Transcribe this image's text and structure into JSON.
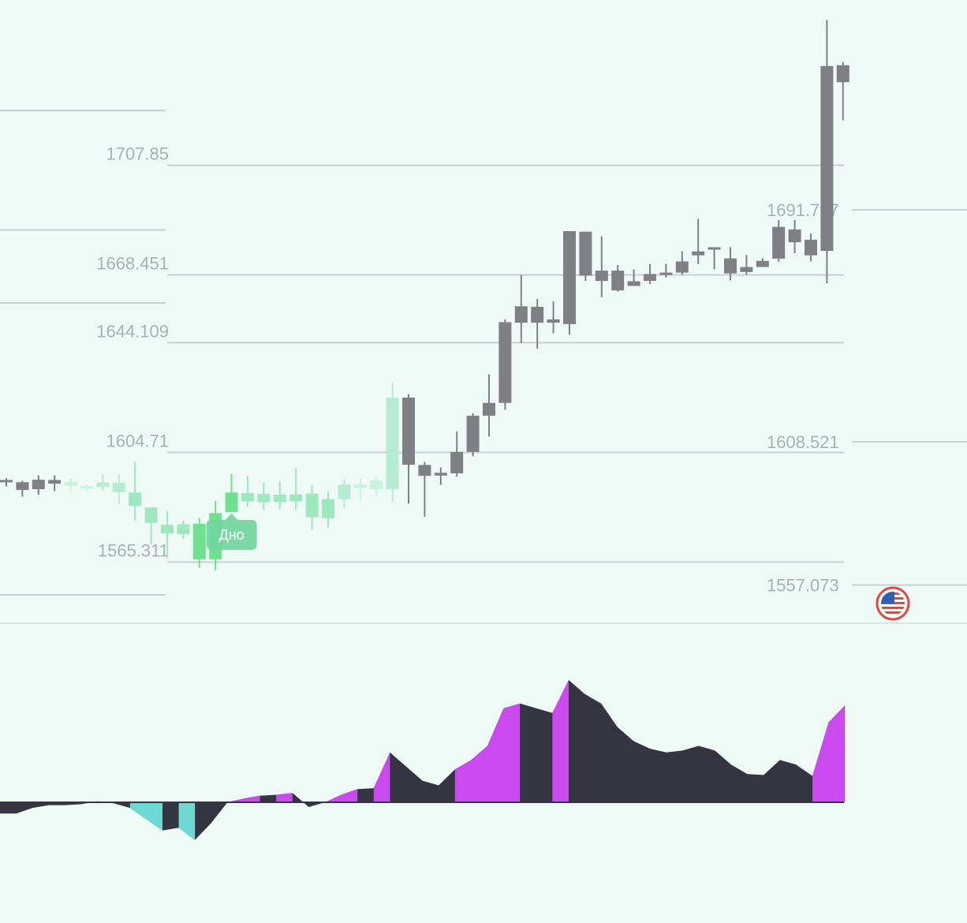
{
  "chart_data": [
    {
      "type": "candlestick",
      "ylim": [
        1530,
        1760
      ],
      "level_lines_left": [
        {
          "price": 1727.5
        },
        {
          "price": 1684.6
        },
        {
          "price": 1658.4
        },
        {
          "price": 1707.85,
          "label": "1707.85"
        },
        {
          "price": 1668.451,
          "label": "1668.451"
        },
        {
          "price": 1644.109,
          "label": "1644.109"
        },
        {
          "price": 1604.71,
          "label": "1604.71"
        },
        {
          "price": 1565.311,
          "label": "1565.311"
        },
        {
          "price": 1553.5
        }
      ],
      "level_lines_right": [
        {
          "price": 1691.797,
          "label": "1691.797"
        },
        {
          "price": 1608.521,
          "label": "1608.521"
        },
        {
          "price": 1557.073,
          "label": "1557.073"
        }
      ],
      "marker": {
        "label": "Дно",
        "candle_index": 14
      },
      "candles": [
        {
          "o": 1594.8,
          "h": 1595.5,
          "l": 1592.5,
          "c": 1594.1,
          "color": "#7f7f86"
        },
        {
          "o": 1594.0,
          "h": 1594.5,
          "l": 1588.8,
          "c": 1591.2,
          "color": "#7f7f86"
        },
        {
          "o": 1594.9,
          "h": 1596.5,
          "l": 1589.5,
          "c": 1591.5,
          "color": "#7f7f86"
        },
        {
          "o": 1594.8,
          "h": 1596.5,
          "l": 1590.8,
          "c": 1593.5,
          "color": "#7f7f86"
        },
        {
          "o": 1594.2,
          "h": 1595.5,
          "l": 1590.0,
          "c": 1592.7,
          "color": "#c8f3df"
        },
        {
          "o": 1592.5,
          "h": 1593.2,
          "l": 1591.0,
          "c": 1591.8,
          "color": "#c8f3df"
        },
        {
          "o": 1593.9,
          "h": 1596.8,
          "l": 1591.0,
          "c": 1592.3,
          "color": "#b5ecd2"
        },
        {
          "o": 1593.8,
          "h": 1597.0,
          "l": 1586.2,
          "c": 1590.4,
          "color": "#b5ecd2"
        },
        {
          "o": 1590.3,
          "h": 1601.3,
          "l": 1580.2,
          "c": 1585.5,
          "color": "#9ee8bd"
        },
        {
          "o": 1584.9,
          "h": 1583.7,
          "l": 1571.6,
          "c": 1579.4,
          "color": "#9ee8bd"
        },
        {
          "o": 1578.7,
          "h": 1583.7,
          "l": 1566.8,
          "c": 1575.6,
          "color": "#9ee8bd"
        },
        {
          "o": 1578.9,
          "h": 1580.2,
          "l": 1573.5,
          "c": 1575.4,
          "color": "#9ee8bd"
        },
        {
          "o": 1579.1,
          "h": 1581.2,
          "l": 1563.3,
          "c": 1566.3,
          "color": "#6ee08f"
        },
        {
          "o": 1582.9,
          "h": 1587.3,
          "l": 1562.3,
          "c": 1566.3,
          "color": "#6ee08f"
        },
        {
          "o": 1590.3,
          "h": 1597.0,
          "l": 1583.7,
          "c": 1583.3,
          "color": "#6ee08f"
        },
        {
          "o": 1590.1,
          "h": 1596.3,
          "l": 1585.2,
          "c": 1587.1,
          "color": "#9ee8bd"
        },
        {
          "o": 1589.8,
          "h": 1594.0,
          "l": 1584.0,
          "c": 1586.8,
          "color": "#9ee8bd"
        },
        {
          "o": 1589.5,
          "h": 1594.3,
          "l": 1584.4,
          "c": 1586.9,
          "color": "#9ee8bd"
        },
        {
          "o": 1589.6,
          "h": 1599.2,
          "l": 1584.2,
          "c": 1587.1,
          "color": "#9ee8bd"
        },
        {
          "o": 1589.9,
          "h": 1592.8,
          "l": 1576.9,
          "c": 1581.4,
          "color": "#9ee8bd"
        },
        {
          "o": 1587.9,
          "h": 1590.8,
          "l": 1577.8,
          "c": 1581.1,
          "color": "#9ee8bd"
        },
        {
          "o": 1593.2,
          "h": 1595.2,
          "l": 1584.4,
          "c": 1587.9,
          "color": "#b5ecd2"
        },
        {
          "o": 1593.2,
          "h": 1595.2,
          "l": 1587.3,
          "c": 1591.9,
          "color": "#c8f3df"
        },
        {
          "o": 1594.6,
          "h": 1596.3,
          "l": 1588.8,
          "c": 1591.5,
          "color": "#c8f3df"
        },
        {
          "o": 1624.4,
          "h": 1630.0,
          "l": 1587.0,
          "c": 1591.5,
          "color": "#b5ecd2"
        },
        {
          "o": 1624.4,
          "h": 1625.6,
          "l": 1586.3,
          "c": 1600.3,
          "color": "#7f7f86"
        },
        {
          "o": 1600.2,
          "h": 1601.3,
          "l": 1581.5,
          "c": 1596.3,
          "color": "#7f7f86"
        },
        {
          "o": 1597.4,
          "h": 1599.3,
          "l": 1593.0,
          "c": 1596.4,
          "color": "#7f7f86"
        },
        {
          "o": 1597.2,
          "h": 1612.3,
          "l": 1596.0,
          "c": 1604.9,
          "color": "#7f7f86"
        },
        {
          "o": 1604.9,
          "h": 1618.8,
          "l": 1603.3,
          "c": 1617.9,
          "color": "#7f7f86"
        },
        {
          "o": 1617.9,
          "h": 1632.8,
          "l": 1610.4,
          "c": 1622.5,
          "color": "#7f7f86"
        },
        {
          "o": 1622.5,
          "h": 1652.5,
          "l": 1620.0,
          "c": 1651.5,
          "color": "#7f7f86"
        },
        {
          "o": 1651.3,
          "h": 1668.5,
          "l": 1644.0,
          "c": 1657.2,
          "color": "#7f7f86"
        },
        {
          "o": 1651.3,
          "h": 1659.8,
          "l": 1642.0,
          "c": 1657.0,
          "color": "#7f7f86"
        },
        {
          "o": 1652.5,
          "h": 1659.0,
          "l": 1647.5,
          "c": 1651.3,
          "color": "#7f7f86"
        },
        {
          "o": 1650.8,
          "h": 1684.2,
          "l": 1647.0,
          "c": 1684.2,
          "color": "#7f7f86"
        },
        {
          "o": 1684.0,
          "h": 1684.0,
          "l": 1666.3,
          "c": 1668.2,
          "color": "#7f7f86"
        },
        {
          "o": 1670.0,
          "h": 1682.3,
          "l": 1660.5,
          "c": 1666.3,
          "color": "#7f7f86"
        },
        {
          "o": 1670.0,
          "h": 1672.0,
          "l": 1662.5,
          "c": 1662.9,
          "color": "#7f7f86"
        },
        {
          "o": 1666.2,
          "h": 1670.4,
          "l": 1664.5,
          "c": 1664.5,
          "color": "#7f7f86"
        },
        {
          "o": 1668.8,
          "h": 1672.4,
          "l": 1665.2,
          "c": 1666.3,
          "color": "#7f7f86"
        },
        {
          "o": 1669.3,
          "h": 1672.5,
          "l": 1667.5,
          "c": 1668.5,
          "color": "#7f7f86"
        },
        {
          "o": 1673.3,
          "h": 1677.0,
          "l": 1668.5,
          "c": 1669.3,
          "color": "#7f7f86"
        },
        {
          "o": 1676.9,
          "h": 1688.6,
          "l": 1672.4,
          "c": 1675.5,
          "color": "#7f7f86"
        },
        {
          "o": 1678.4,
          "h": 1678.4,
          "l": 1670.5,
          "c": 1678.4,
          "color": "#7f7f86"
        },
        {
          "o": 1674.4,
          "h": 1678.4,
          "l": 1666.5,
          "c": 1669.0,
          "color": "#7f7f86"
        },
        {
          "o": 1671.3,
          "h": 1675.6,
          "l": 1668.5,
          "c": 1669.5,
          "color": "#7f7f86"
        },
        {
          "o": 1673.5,
          "h": 1674.5,
          "l": 1671.3,
          "c": 1671.3,
          "color": "#7f7f86"
        },
        {
          "o": 1674.3,
          "h": 1688.2,
          "l": 1673.2,
          "c": 1685.7,
          "color": "#7f7f86"
        },
        {
          "o": 1684.8,
          "h": 1688.2,
          "l": 1676.3,
          "c": 1680.2,
          "color": "#7f7f86"
        },
        {
          "o": 1681.1,
          "h": 1683.3,
          "l": 1673.3,
          "c": 1675.5,
          "color": "#7f7f86"
        },
        {
          "o": 1677.1,
          "h": 1760.0,
          "l": 1665.5,
          "c": 1743.5,
          "color": "#7f7f86"
        },
        {
          "o": 1743.8,
          "h": 1745.0,
          "l": 1724.0,
          "c": 1737.7,
          "color": "#7f7f86"
        }
      ]
    },
    {
      "type": "area",
      "colors": {
        "positive": "#cb4af0",
        "negative": "#6ed8d2",
        "base": "#343540"
      },
      "series": [
        {
          "values": [
            -12,
            -12,
            -6,
            -3,
            -3,
            -2,
            1,
            -1,
            -6,
            -18,
            -30,
            -27,
            -40,
            -22,
            0,
            4,
            7,
            8,
            10,
            -5,
            0,
            8,
            14,
            15,
            53,
            38,
            23,
            18,
            35,
            45,
            60,
            100,
            105,
            100,
            95,
            130,
            115,
            105,
            80,
            65,
            57,
            53,
            55,
            60,
            55,
            40,
            30,
            29,
            45,
            40,
            28,
            85,
            103
          ]
        }
      ],
      "highlight": [
        {
          "from": 8,
          "to": 10,
          "color": "#6ed8d2"
        },
        {
          "from": 11,
          "to": 12,
          "color": "#6ed8d2"
        },
        {
          "from": 14,
          "to": 16,
          "color": "#cb4af0"
        },
        {
          "from": 17,
          "to": 18,
          "color": "#cb4af0"
        },
        {
          "from": 20,
          "to": 22,
          "color": "#cb4af0"
        },
        {
          "from": 23,
          "to": 24,
          "color": "#cb4af0"
        },
        {
          "from": 28,
          "to": 32,
          "color": "#cb4af0"
        },
        {
          "from": 34,
          "to": 35,
          "color": "#cb4af0"
        },
        {
          "from": 50,
          "to": 52,
          "color": "#cb4af0"
        }
      ]
    }
  ],
  "badge": {
    "icon": "us-flag-icon"
  }
}
